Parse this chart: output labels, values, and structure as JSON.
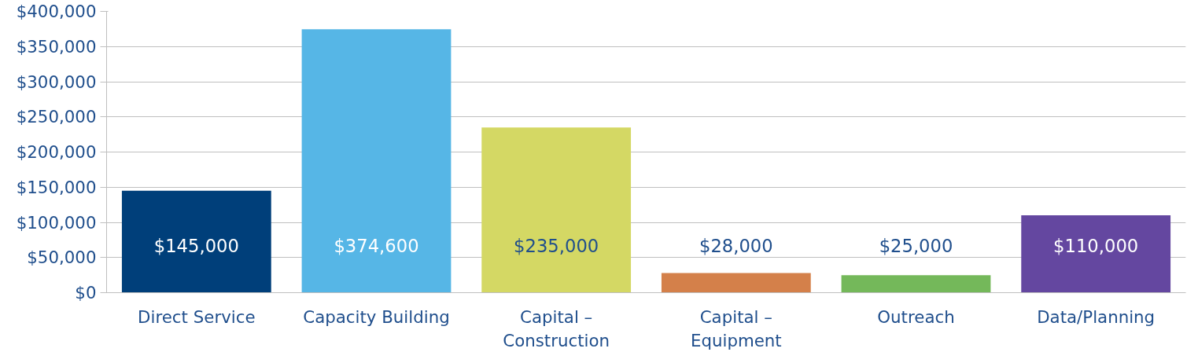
{
  "chart_data": {
    "type": "bar",
    "categories": [
      "Direct Service",
      "Capacity Building",
      "Capital – Construction",
      "Capital – Equipment",
      "Outreach",
      "Data/Planning"
    ],
    "values": [
      145000,
      374600,
      235000,
      28000,
      25000,
      110000
    ],
    "colors": [
      "#003f7a",
      "#56b6e6",
      "#d4d864",
      "#d4804a",
      "#74b85a",
      "#6447a0"
    ],
    "ylim": [
      0,
      400000
    ],
    "yticks": [
      {
        "value": 0,
        "label": "$0"
      },
      {
        "value": 50000,
        "label": "$50,000"
      },
      {
        "value": 100000,
        "label": "$100,000"
      },
      {
        "value": 150000,
        "label": "$150,000"
      },
      {
        "value": 200000,
        "label": "$200,000"
      },
      {
        "value": 250000,
        "label": "$250,000"
      },
      {
        "value": 300000,
        "label": "$300,000"
      },
      {
        "value": 350000,
        "label": "$350,000"
      },
      {
        "value": 400000,
        "label": "$400,000"
      }
    ],
    "value_labels": [
      "$145,000",
      "$374,600",
      "$235,000",
      "$28,000",
      "$25,000",
      "$110,000"
    ],
    "grid": "y"
  }
}
